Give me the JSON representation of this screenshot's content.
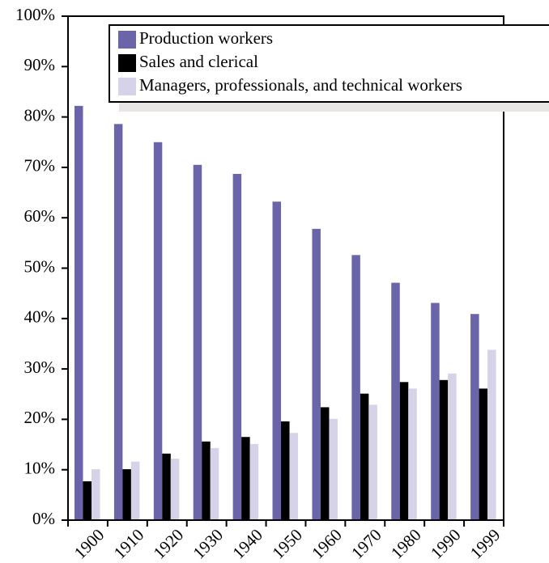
{
  "chart_data": {
    "type": "bar",
    "categories": [
      "1900",
      "1910",
      "1920",
      "1930",
      "1940",
      "1950",
      "1960",
      "1970",
      "1980",
      "1990",
      "1999"
    ],
    "series": [
      {
        "name": "Production workers",
        "color": "#6a65a8",
        "values": [
          82.2,
          78.6,
          75,
          70.5,
          68.7,
          63.2,
          57.8,
          52.6,
          47.1,
          43.1,
          40.9
        ]
      },
      {
        "name": "Sales and clerical",
        "color": "#000000",
        "values": [
          7.7,
          10.1,
          13.2,
          15.6,
          16.5,
          19.6,
          22.4,
          25.1,
          27.4,
          27.8,
          26.1
        ]
      },
      {
        "name": "Managers, professionals, and technical workers",
        "color": "#d6d2e8",
        "values": [
          10.1,
          11.6,
          12.2,
          14.3,
          15.1,
          17.3,
          20.1,
          22.9,
          26.1,
          29.1,
          33.8
        ]
      }
    ],
    "ylim": [
      0,
      100
    ],
    "yticks": [
      {
        "value": 0,
        "label": "0%"
      },
      {
        "value": 10,
        "label": "10%"
      },
      {
        "value": 20,
        "label": "20%"
      },
      {
        "value": 30,
        "label": "30%"
      },
      {
        "value": 40,
        "label": "40%"
      },
      {
        "value": 50,
        "label": "50%"
      },
      {
        "value": 60,
        "label": "60%"
      },
      {
        "value": 70,
        "label": "70%"
      },
      {
        "value": 80,
        "label": "80%"
      },
      {
        "value": 90,
        "label": "90%"
      },
      {
        "value": 100,
        "label": "100%"
      }
    ],
    "legend": "upper right"
  }
}
